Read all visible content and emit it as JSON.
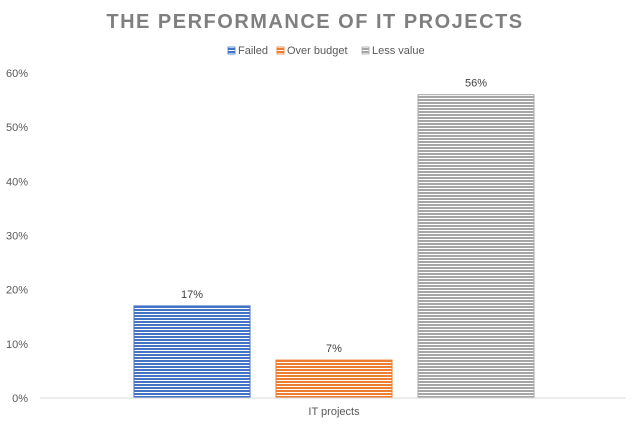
{
  "chart_data": {
    "type": "bar",
    "title": "THE PERFORMANCE OF IT PROJECTS",
    "categories": [
      "IT projects"
    ],
    "series": [
      {
        "name": "Failed",
        "values": [
          17
        ],
        "color": "#4472c4",
        "label": "17%"
      },
      {
        "name": "Over budget",
        "values": [
          7
        ],
        "color": "#ed7d31",
        "label": "7%"
      },
      {
        "name": "Less value",
        "values": [
          56
        ],
        "color": "#a5a5a5",
        "label": "56%"
      }
    ],
    "y_ticks": [
      "0%",
      "10%",
      "20%",
      "30%",
      "40%",
      "50%",
      "60%"
    ],
    "ylim": [
      0,
      60
    ],
    "grid": false,
    "legend_position": "top",
    "bar_pattern": "horizontal-lines"
  }
}
